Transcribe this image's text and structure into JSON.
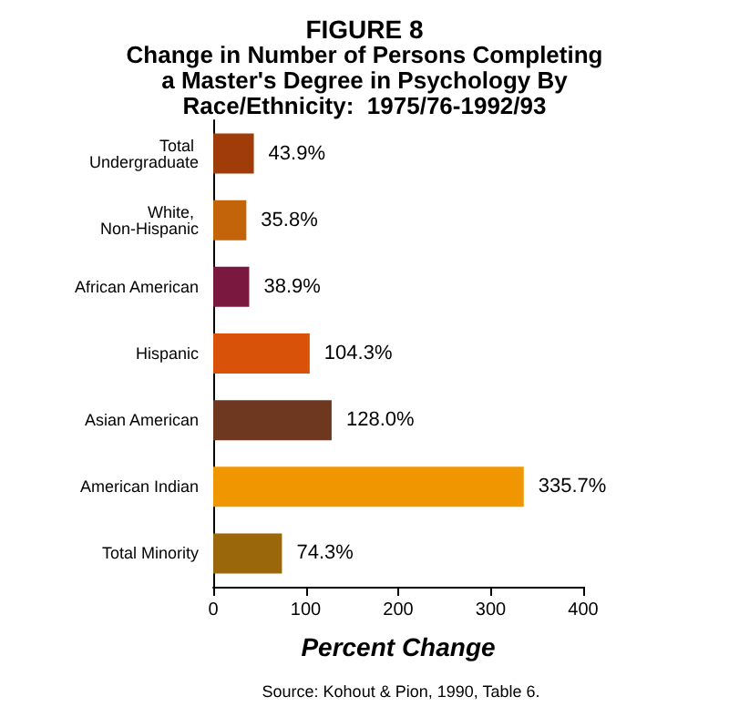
{
  "chart_data": {
    "type": "bar",
    "orientation": "horizontal",
    "title": "FIGURE 8",
    "subtitle": "Change in Number of Persons Completing\na Master's Degree in Psychology By\nRace/Ethnicity:  1975/76-1992/93",
    "xlabel": "Percent Change",
    "annotations": [
      "Source: Kohout & Pion, 1990, Table 6."
    ],
    "categories": [
      "Total Undergraduate",
      "White, Non-Hispanic",
      "African American",
      "Hispanic",
      "Asian American",
      "American Indian",
      "Total Minority"
    ],
    "values": [
      43.9,
      35.8,
      38.9,
      104.3,
      128.0,
      335.7,
      74.3
    ],
    "value_labels": [
      "43.9%",
      "35.8%",
      "38.9%",
      "104.3%",
      "128.0%",
      "335.7%",
      "74.3%"
    ],
    "colors": [
      "#a03c0a",
      "#c4640a",
      "#7a1840",
      "#d8520a",
      "#6e3820",
      "#f09600",
      "#9a680a"
    ],
    "xlim": [
      0,
      400
    ],
    "xticks": [
      0,
      100,
      200,
      300,
      400
    ],
    "grid": false
  }
}
